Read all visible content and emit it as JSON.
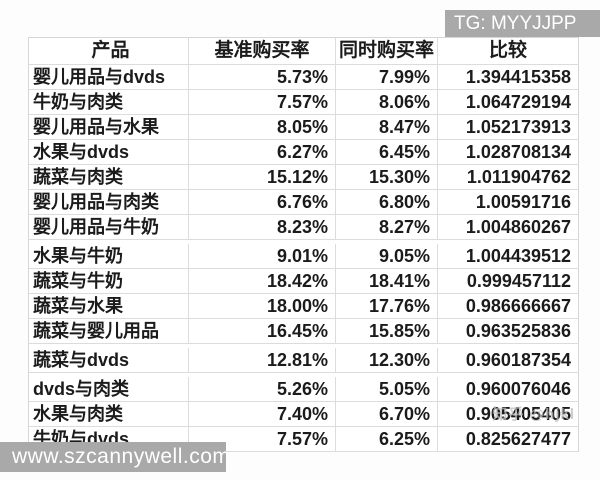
{
  "chart_data": {
    "type": "table",
    "columns": [
      "产品",
      "基准购买率",
      "同时购买率",
      "比较"
    ],
    "rows": [
      [
        "婴儿用品与dvds",
        "5.73%",
        "7.99%",
        "1.394415358"
      ],
      [
        "牛奶与肉类",
        "7.57%",
        "8.06%",
        "1.064729194"
      ],
      [
        "婴儿用品与水果",
        "8.05%",
        "8.47%",
        "1.052173913"
      ],
      [
        "水果与dvds",
        "6.27%",
        "6.45%",
        "1.028708134"
      ],
      [
        "蔬菜与肉类",
        "15.12%",
        "15.30%",
        "1.011904762"
      ],
      [
        "婴儿用品与肉类",
        "6.76%",
        "6.80%",
        "1.00591716"
      ],
      [
        "婴儿用品与牛奶",
        "8.23%",
        "8.27%",
        "1.004860267"
      ],
      [
        "水果与牛奶",
        "9.01%",
        "9.05%",
        "1.004439512"
      ],
      [
        "蔬菜与牛奶",
        "18.42%",
        "18.41%",
        "0.999457112"
      ],
      [
        "蔬菜与水果",
        "18.00%",
        "17.76%",
        "0.986666667"
      ],
      [
        "蔬菜与婴儿用品",
        "16.45%",
        "15.85%",
        "0.963525836"
      ],
      [
        "蔬菜与dvds",
        "12.81%",
        "12.30%",
        "0.960187354"
      ],
      [
        "dvds与肉类",
        "5.26%",
        "5.05%",
        "0.960076046"
      ],
      [
        "水果与肉类",
        "7.40%",
        "6.70%",
        "0.905405405"
      ],
      [
        "牛奶与dvds",
        "7.57%",
        "6.25%",
        "0.825627477"
      ]
    ]
  },
  "watermarks": {
    "top_right": "TG: MYYJJPP",
    "bottom_left": "www.szcannywell.com",
    "zhihu": "知乎 @hjkl"
  },
  "colors": {
    "text": "#1b1b1b",
    "gridline": "#d6d6d6",
    "watermark_bg": "#a9a9a9",
    "watermark_text": "#ffffff"
  }
}
